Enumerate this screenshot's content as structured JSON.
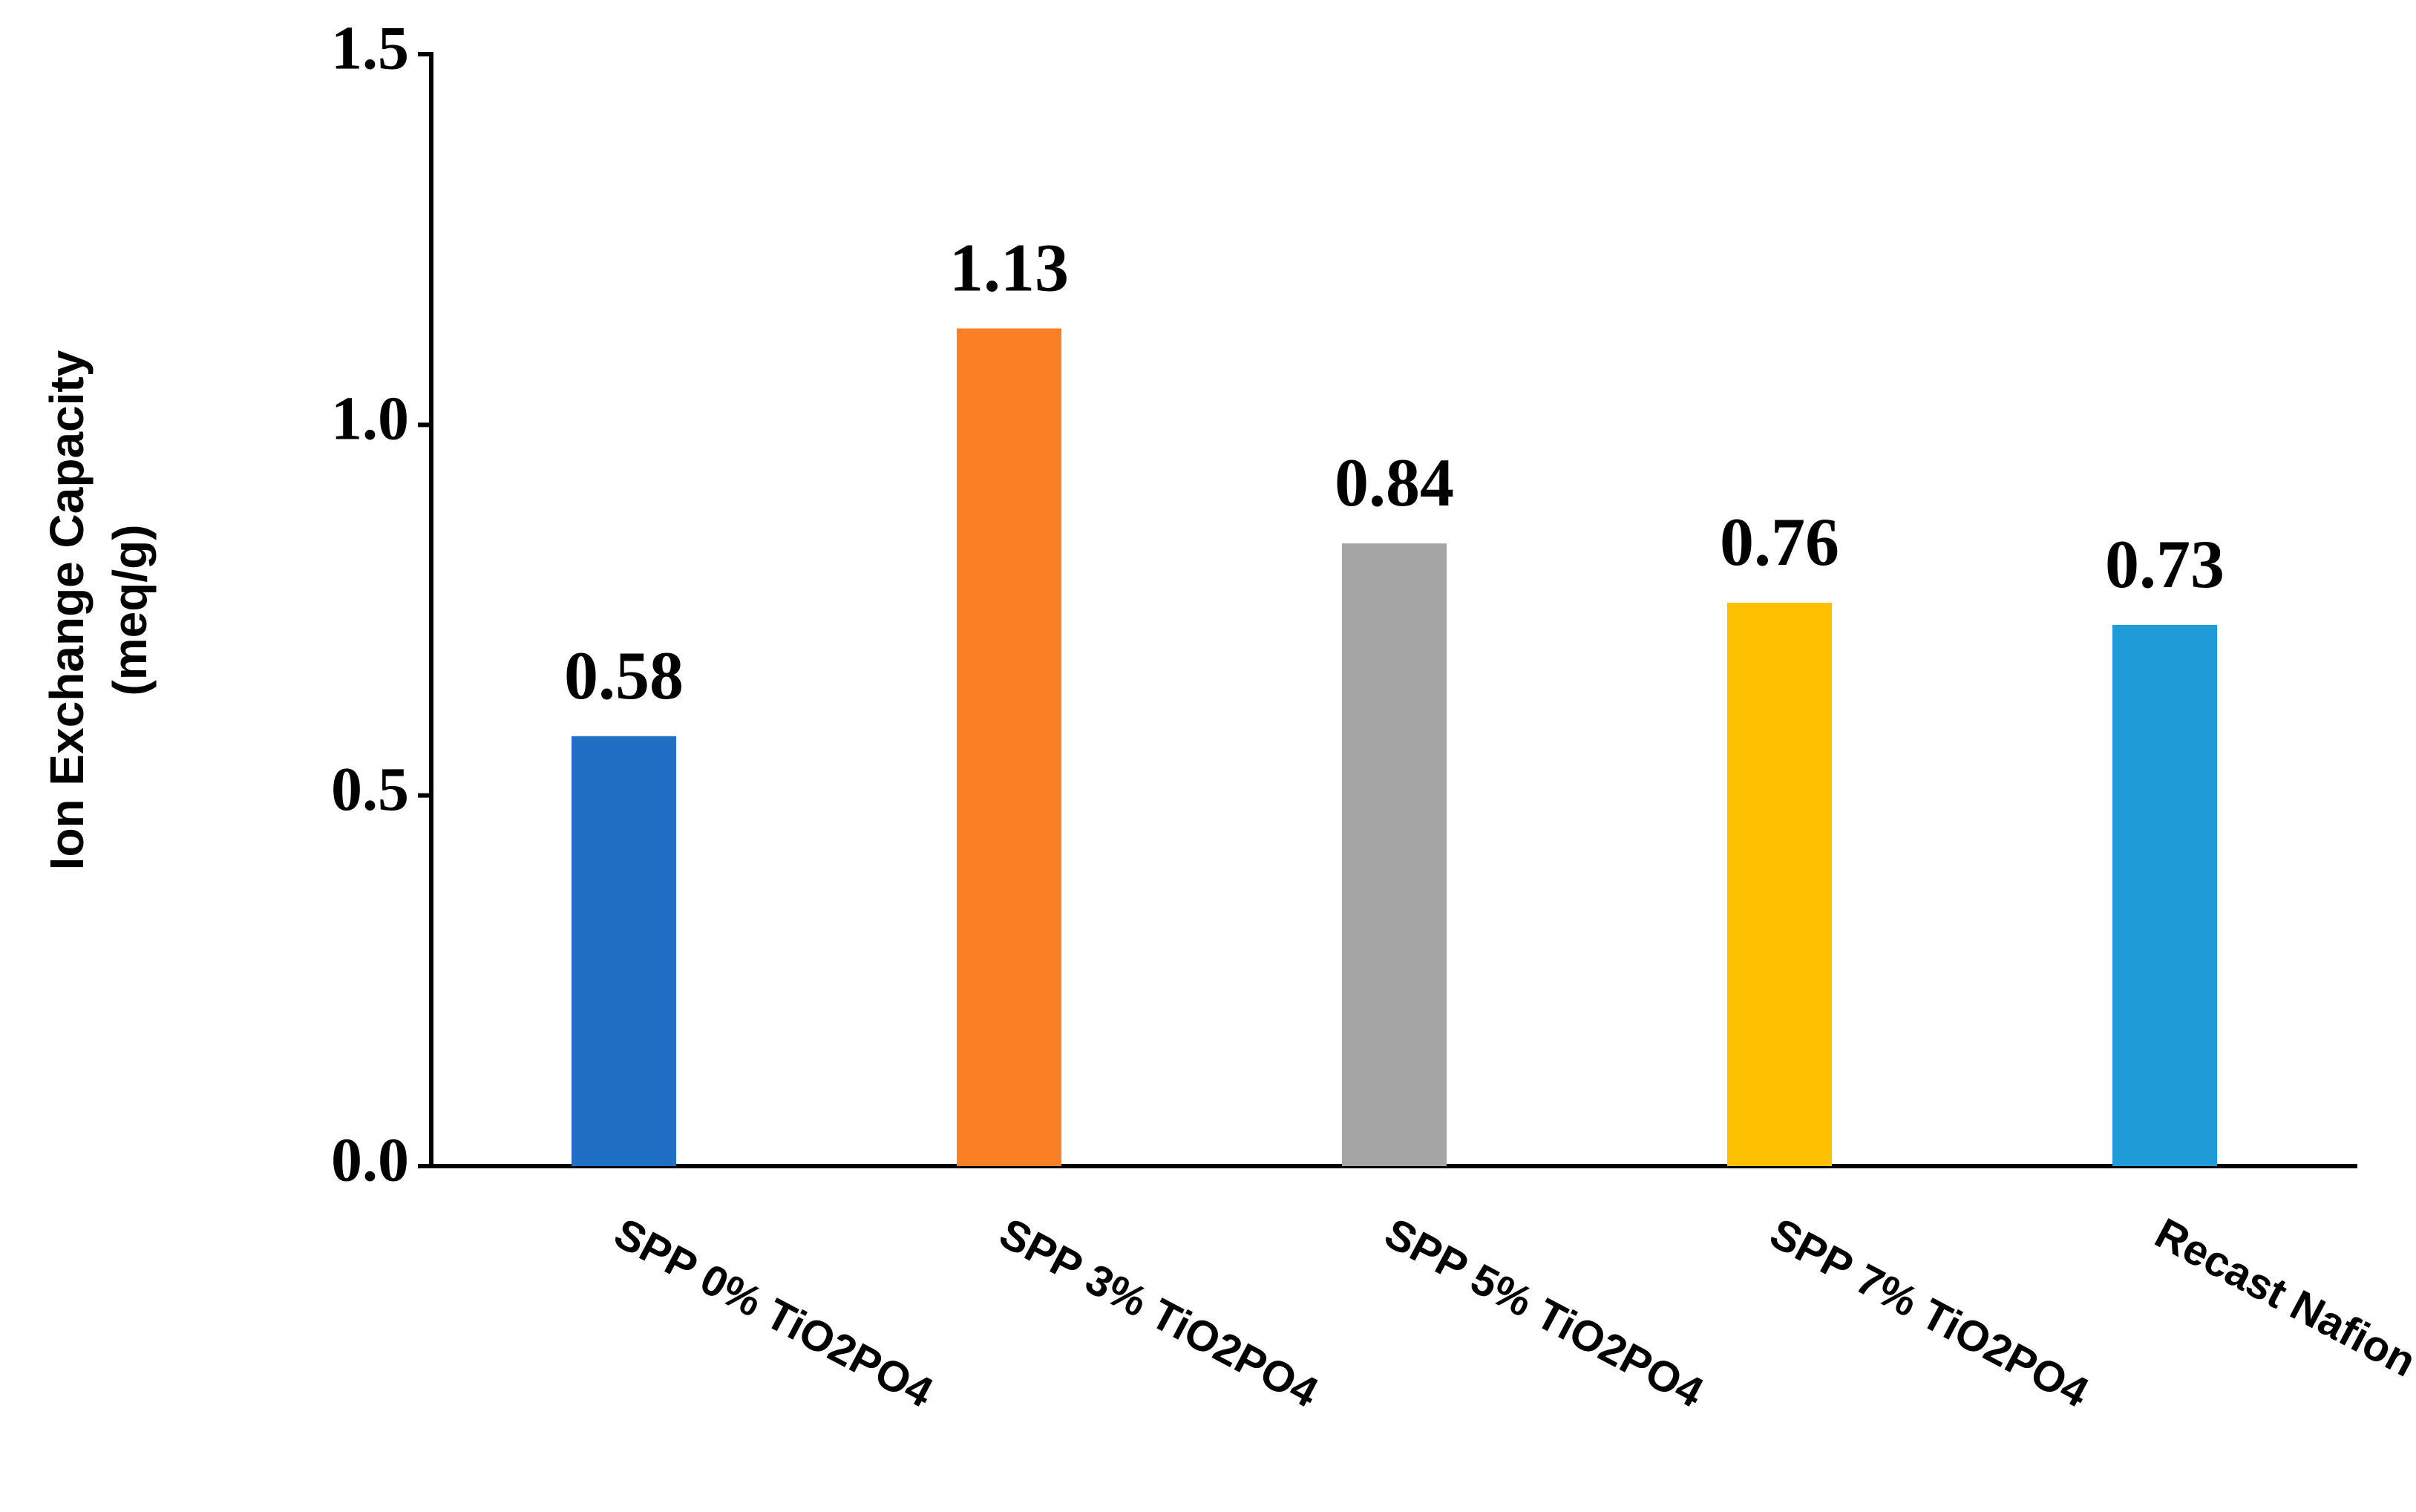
{
  "chart_data": {
    "type": "bar",
    "ylabel": [
      "Ion Exchange Capacity",
      "(meq/g)"
    ],
    "categories": [
      "SPP 0% TiO2PO4",
      "SPP 3% TiO2PO4",
      "SPP 5% TiO2PO4",
      "SPP 7% TiO2PO4",
      "Recast Nafion"
    ],
    "values": [
      0.58,
      1.13,
      0.84,
      0.76,
      0.73
    ],
    "colors": [
      "#1f6fc5",
      "#fb7f24",
      "#a5a5a5",
      "#fdc000",
      "#1f9bd7"
    ],
    "ylim": [
      0,
      1.5
    ],
    "yticks": [
      {
        "value": 0,
        "label": "0.0"
      },
      {
        "value": 0.5,
        "label": "0.5"
      },
      {
        "value": 1,
        "label": "1.0"
      },
      {
        "value": 1.5,
        "label": "1.5"
      }
    ],
    "grid": false
  }
}
